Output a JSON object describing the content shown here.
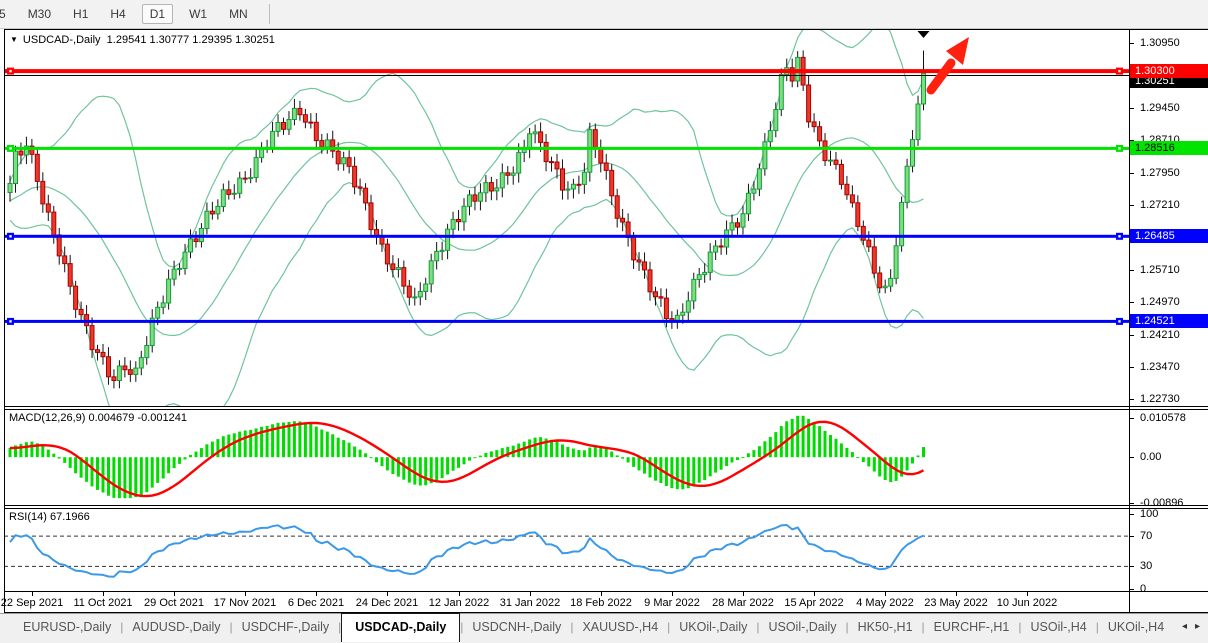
{
  "toolbar": {
    "timeframes": [
      "5",
      "M30",
      "H1",
      "H4",
      "D1",
      "W1",
      "MN"
    ],
    "active": "D1"
  },
  "title": {
    "marker": "▼",
    "symbol": "USDCAD-,Daily",
    "ohlc": "1.29541 1.30777 1.29395 1.30251"
  },
  "price_axis": {
    "ticks": [
      "1.30950",
      "1.29450",
      "1.28710",
      "1.27950",
      "1.27210",
      "1.25710",
      "1.24970",
      "1.24210",
      "1.23470",
      "1.22730"
    ],
    "tick_values": [
      1.3095,
      1.2945,
      1.2871,
      1.2795,
      1.2721,
      1.2571,
      1.2497,
      1.2421,
      1.2347,
      1.2273
    ]
  },
  "levels": [
    {
      "name": "resistance-red",
      "price": 1.303,
      "label": "1.30300",
      "color": "#FF0000",
      "thickness": 4,
      "text_color": "#FFFFFF",
      "handles": true
    },
    {
      "name": "current-price",
      "price": 1.30251,
      "label": "1.30251",
      "color": "#000000",
      "thickness": 1,
      "text_color": "#FFFFFF",
      "handles": false
    },
    {
      "name": "support-green",
      "price": 1.28516,
      "label": "1.28516",
      "color": "#00E400",
      "thickness": 3,
      "text_color": "#000000",
      "handles": true
    },
    {
      "name": "support-blue-upper",
      "price": 1.26485,
      "label": "1.26485",
      "color": "#0000FF",
      "thickness": 3,
      "text_color": "#FFFFFF",
      "handles": true
    },
    {
      "name": "support-blue-lower",
      "price": 1.24521,
      "label": "1.24521",
      "color": "#0000FF",
      "thickness": 3,
      "text_color": "#FFFFFF",
      "handles": true
    }
  ],
  "macd_panel": {
    "label": "MACD(12,26,9) 0.004679 -0.001241",
    "axis_top": "0.010578",
    "axis_zero": "0.00",
    "axis_bottom": "-0.00896"
  },
  "rsi_panel": {
    "label": "RSI(14) 67.1966",
    "axis_labels": [
      "100",
      "70",
      "30",
      "0"
    ],
    "axis_values": [
      100,
      70,
      30,
      0
    ],
    "upper_level": 70,
    "lower_level": 30
  },
  "date_axis": {
    "labels": [
      "22 Sep 2021",
      "11 Oct 2021",
      "29 Oct 2021",
      "17 Nov 2021",
      "6 Dec 2021",
      "24 Dec 2021",
      "12 Jan 2022",
      "31 Jan 2022",
      "18 Feb 2022",
      "9 Mar 2022",
      "28 Mar 2022",
      "15 Apr 2022",
      "4 May 2022",
      "23 May 2022",
      "10 Jun 2022"
    ]
  },
  "tabs": {
    "items": [
      "EURUSD-,Daily",
      "AUDUSD-,Daily",
      "USDCHF-,Daily",
      "USDCAD-,Daily",
      "USDCNH-,Daily",
      "XAUUSD-,H4",
      "UKOil-,Daily",
      "USOil-,Daily",
      "HK50-,H1",
      "EURCHF-,H1",
      "USOil-,H4",
      "UKOil-,H4"
    ],
    "active_index": 3,
    "scroll_left": "◂",
    "scroll_right": "▸"
  },
  "colors": {
    "bull_fill": "#7FDD7F",
    "bull_border": "#0F9D3A",
    "bear_fill": "#E8392B",
    "bear_border": "#AA0000",
    "wick": "#111111",
    "bollinger": "#6FC49A",
    "macd_hist": "#00DC00",
    "macd_signal": "#FF0000",
    "rsi_line": "#3B99E8",
    "arrow": "#FF2010",
    "level_red": "#FF0000",
    "level_green": "#00E400",
    "level_blue": "#0000FF"
  },
  "chart_data": {
    "type": "candlestick",
    "symbol": "USDCAD",
    "timeframe": "Daily",
    "last_candle": {
      "open": 1.29541,
      "high": 1.30777,
      "low": 1.29395,
      "close": 1.30251
    },
    "visible_candles": 168,
    "warmup_candles": 40,
    "y_axis_range": [
      1.2273,
      1.3095
    ],
    "close_anchors": [
      [
        -40,
        1.26
      ],
      [
        -20,
        1.27
      ],
      [
        0,
        1.276
      ],
      [
        1,
        1.282
      ],
      [
        3,
        1.286
      ],
      [
        5,
        1.279
      ],
      [
        7,
        1.27
      ],
      [
        9,
        1.262
      ],
      [
        11,
        1.252
      ],
      [
        13,
        1.245
      ],
      [
        15,
        1.24
      ],
      [
        17,
        1.2365
      ],
      [
        19,
        1.233
      ],
      [
        21,
        1.235
      ],
      [
        23,
        1.232
      ],
      [
        25,
        1.24
      ],
      [
        27,
        1.248
      ],
      [
        29,
        1.255
      ],
      [
        31,
        1.26
      ],
      [
        33,
        1.263
      ],
      [
        35,
        1.266
      ],
      [
        37,
        1.27
      ],
      [
        39,
        1.274
      ],
      [
        41,
        1.277
      ],
      [
        43,
        1.279
      ],
      [
        45,
        1.282
      ],
      [
        47,
        1.286
      ],
      [
        49,
        1.289
      ],
      [
        51,
        1.292
      ],
      [
        53,
        1.295
      ],
      [
        54,
        1.293
      ],
      [
        56,
        1.288
      ],
      [
        58,
        1.285
      ],
      [
        60,
        1.282
      ],
      [
        62,
        1.28
      ],
      [
        64,
        1.276
      ],
      [
        66,
        1.269
      ],
      [
        68,
        1.262
      ],
      [
        70,
        1.257
      ],
      [
        72,
        1.253
      ],
      [
        74,
        1.249
      ],
      [
        76,
        1.256
      ],
      [
        78,
        1.262
      ],
      [
        80,
        1.266
      ],
      [
        82,
        1.269
      ],
      [
        84,
        1.272
      ],
      [
        86,
        1.275
      ],
      [
        88,
        1.277
      ],
      [
        90,
        1.279
      ],
      [
        92,
        1.281
      ],
      [
        94,
        1.284
      ],
      [
        95,
        1.289
      ],
      [
        97,
        1.285
      ],
      [
        99,
        1.282
      ],
      [
        101,
        1.278
      ],
      [
        103,
        1.276
      ],
      [
        105,
        1.28
      ],
      [
        106,
        1.287
      ],
      [
        108,
        1.282
      ],
      [
        110,
        1.274
      ],
      [
        112,
        1.268
      ],
      [
        114,
        1.262
      ],
      [
        116,
        1.256
      ],
      [
        118,
        1.25
      ],
      [
        120,
        1.246
      ],
      [
        122,
        1.245
      ],
      [
        124,
        1.252
      ],
      [
        126,
        1.257
      ],
      [
        128,
        1.26
      ],
      [
        130,
        1.263
      ],
      [
        132,
        1.266
      ],
      [
        134,
        1.27
      ],
      [
        136,
        1.278
      ],
      [
        138,
        1.286
      ],
      [
        140,
        1.295
      ],
      [
        141,
        1.3
      ],
      [
        142,
        1.303
      ],
      [
        143,
        1.301
      ],
      [
        144,
        1.304
      ],
      [
        145,
        1.299
      ],
      [
        146,
        1.293
      ],
      [
        148,
        1.287
      ],
      [
        150,
        1.283
      ],
      [
        152,
        1.278
      ],
      [
        154,
        1.27
      ],
      [
        156,
        1.264
      ],
      [
        158,
        1.257
      ],
      [
        160,
        1.253
      ],
      [
        161,
        1.256
      ],
      [
        162,
        1.265
      ],
      [
        163,
        1.272
      ],
      [
        164,
        1.28
      ],
      [
        165,
        1.288
      ],
      [
        166,
        1.29541
      ],
      [
        167,
        1.30251
      ]
    ],
    "indicators": {
      "bollinger": {
        "period": 20,
        "deviation": 2
      },
      "macd": {
        "fast": 12,
        "slow": 26,
        "signal": 9,
        "current_value": "0.004679",
        "current_signal": "-0.001241"
      },
      "rsi": {
        "period": 14,
        "current_value": "67.1966"
      }
    }
  }
}
